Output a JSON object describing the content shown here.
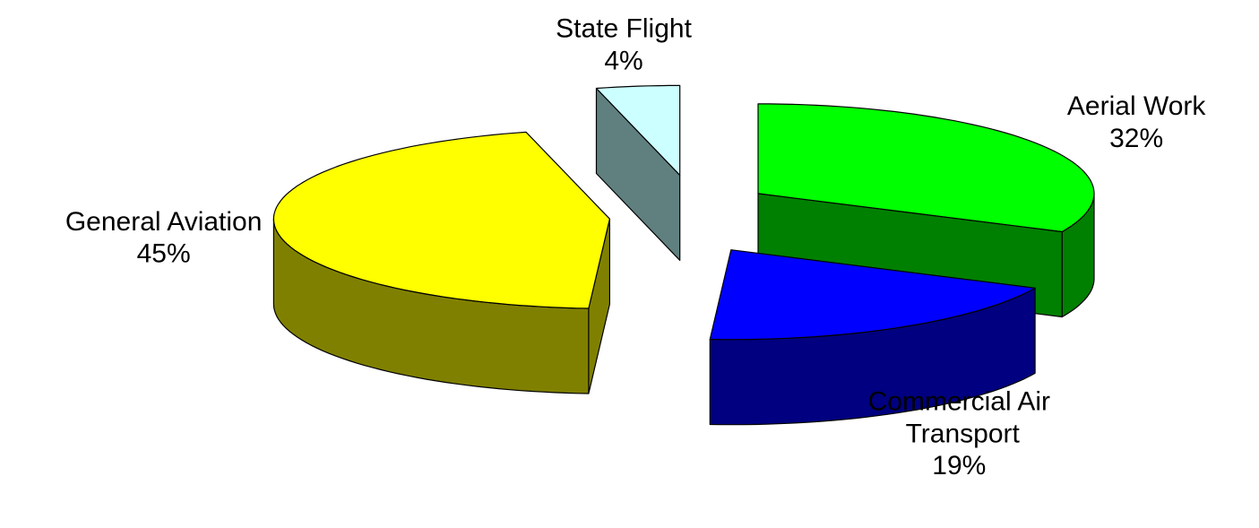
{
  "chart_data": {
    "type": "pie",
    "categories": [
      "Aerial Work",
      "Commercial Air Transport",
      "General Aviation",
      "State Flight"
    ],
    "values": [
      32,
      19,
      45,
      4
    ],
    "value_labels": [
      "32%",
      "19%",
      "45%",
      "4%"
    ],
    "colors": [
      "#00ff00",
      "#0000ff",
      "#ffff00",
      "#ccffff"
    ],
    "side_colors": [
      "#008000",
      "#000080",
      "#808000",
      "#608080"
    ],
    "exploded": true,
    "three_d": true
  }
}
